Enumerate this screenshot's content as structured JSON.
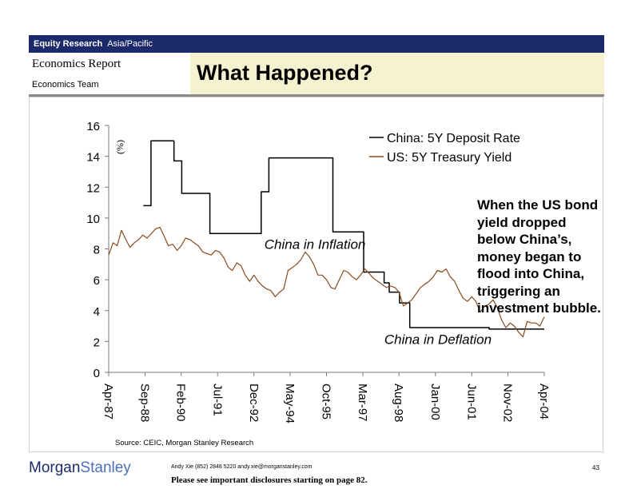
{
  "header": {
    "dept": "Equity Research",
    "region": "Asia/Pacific",
    "report_type": "Economics Report",
    "team": "Economics Team",
    "title": "What Happened?"
  },
  "annotation": "When the US bond yield dropped below China’s, money began to flood into China, triggering an investment bubble.",
  "source": "Source: CEIC, Morgan Stanley Research",
  "footer": {
    "logo_part1": "Morgan",
    "logo_part2": "Stanley",
    "contact": "Andy Xie (852) 2848 5220  andy.xie@morganstanley.com",
    "disclosure": "Please see important disclosures starting on page 82.",
    "page_number": "43"
  },
  "colors": {
    "header_bar": "#1b2a6b",
    "title_bg": "#f4f2cf",
    "china_series": "#000000",
    "us_series": "#8b4a1c"
  },
  "chart_data": {
    "type": "line",
    "title": "",
    "ylabel": "(%)",
    "xlabel": "",
    "ylim": [
      0,
      16
    ],
    "yticks": [
      "0",
      "2",
      "4",
      "6",
      "8",
      "10",
      "12",
      "14",
      "16"
    ],
    "xlim": [
      1987.25,
      2004.25
    ],
    "x_ticks": [
      {
        "x": 1987.25,
        "label": "Apr-87"
      },
      {
        "x": 1988.67,
        "label": "Sep-88"
      },
      {
        "x": 1990.08,
        "label": "Feb-90"
      },
      {
        "x": 1991.5,
        "label": "Jul-91"
      },
      {
        "x": 1992.92,
        "label": "Dec-92"
      },
      {
        "x": 1994.33,
        "label": "May-94"
      },
      {
        "x": 1995.75,
        "label": "Oct-95"
      },
      {
        "x": 1997.17,
        "label": "Mar-97"
      },
      {
        "x": 1998.58,
        "label": "Aug-98"
      },
      {
        "x": 2000.0,
        "label": "Jan-00"
      },
      {
        "x": 2001.42,
        "label": "Jun-01"
      },
      {
        "x": 2002.83,
        "label": "Nov-02"
      },
      {
        "x": 2004.25,
        "label": "Apr-04"
      }
    ],
    "legend": {
      "position": "top-right"
    },
    "series": [
      {
        "name": "China: 5Y Deposit Rate",
        "color": "#000000",
        "step": true,
        "points": [
          [
            1988.6,
            10.8
          ],
          [
            1988.9,
            10.8
          ],
          [
            1988.9,
            15.0
          ],
          [
            1989.8,
            15.0
          ],
          [
            1989.8,
            13.7
          ],
          [
            1990.1,
            13.7
          ],
          [
            1990.1,
            11.6
          ],
          [
            1991.2,
            11.6
          ],
          [
            1991.2,
            9.0
          ],
          [
            1993.2,
            9.0
          ],
          [
            1993.2,
            11.7
          ],
          [
            1993.5,
            11.7
          ],
          [
            1993.5,
            13.9
          ],
          [
            1996.0,
            13.9
          ],
          [
            1996.0,
            9.1
          ],
          [
            1997.2,
            9.1
          ],
          [
            1997.2,
            6.5
          ],
          [
            1998.0,
            6.5
          ],
          [
            1998.0,
            5.8
          ],
          [
            1998.2,
            5.8
          ],
          [
            1998.2,
            5.2
          ],
          [
            1998.6,
            5.2
          ],
          [
            1998.6,
            4.5
          ],
          [
            1999.0,
            4.5
          ],
          [
            1999.0,
            2.9
          ],
          [
            2002.1,
            2.9
          ],
          [
            2002.1,
            2.8
          ],
          [
            2004.25,
            2.8
          ]
        ]
      },
      {
        "name": "US: 5Y Treasury Yield",
        "color": "#8b4a1c",
        "points": [
          [
            1987.25,
            7.6
          ],
          [
            1987.42,
            8.4
          ],
          [
            1987.58,
            8.2
          ],
          [
            1987.75,
            9.2
          ],
          [
            1987.92,
            8.6
          ],
          [
            1988.08,
            8.1
          ],
          [
            1988.25,
            8.4
          ],
          [
            1988.42,
            8.6
          ],
          [
            1988.58,
            8.9
          ],
          [
            1988.75,
            8.7
          ],
          [
            1988.92,
            9.0
          ],
          [
            1989.08,
            9.3
          ],
          [
            1989.25,
            9.4
          ],
          [
            1989.42,
            8.8
          ],
          [
            1989.58,
            8.2
          ],
          [
            1989.75,
            8.3
          ],
          [
            1989.92,
            7.9
          ],
          [
            1990.08,
            8.2
          ],
          [
            1990.25,
            8.7
          ],
          [
            1990.42,
            8.6
          ],
          [
            1990.58,
            8.4
          ],
          [
            1990.75,
            8.2
          ],
          [
            1990.92,
            7.8
          ],
          [
            1991.08,
            7.7
          ],
          [
            1991.25,
            7.6
          ],
          [
            1991.42,
            7.9
          ],
          [
            1991.58,
            7.8
          ],
          [
            1991.75,
            7.4
          ],
          [
            1991.92,
            6.8
          ],
          [
            1992.08,
            6.6
          ],
          [
            1992.25,
            7.1
          ],
          [
            1992.42,
            6.9
          ],
          [
            1992.58,
            6.3
          ],
          [
            1992.75,
            5.9
          ],
          [
            1992.92,
            6.3
          ],
          [
            1993.08,
            5.9
          ],
          [
            1993.25,
            5.6
          ],
          [
            1993.42,
            5.4
          ],
          [
            1993.58,
            5.3
          ],
          [
            1993.75,
            4.9
          ],
          [
            1993.92,
            5.2
          ],
          [
            1994.08,
            5.4
          ],
          [
            1994.25,
            6.6
          ],
          [
            1994.42,
            6.8
          ],
          [
            1994.58,
            7.0
          ],
          [
            1994.75,
            7.3
          ],
          [
            1994.92,
            7.8
          ],
          [
            1995.08,
            7.5
          ],
          [
            1995.25,
            7.0
          ],
          [
            1995.42,
            6.3
          ],
          [
            1995.58,
            6.3
          ],
          [
            1995.75,
            6.0
          ],
          [
            1995.92,
            5.5
          ],
          [
            1996.08,
            5.4
          ],
          [
            1996.25,
            6.0
          ],
          [
            1996.42,
            6.6
          ],
          [
            1996.58,
            6.5
          ],
          [
            1996.75,
            6.2
          ],
          [
            1996.92,
            6.0
          ],
          [
            1997.08,
            6.3
          ],
          [
            1997.25,
            6.7
          ],
          [
            1997.42,
            6.4
          ],
          [
            1997.58,
            6.1
          ],
          [
            1997.75,
            5.9
          ],
          [
            1997.92,
            5.7
          ],
          [
            1998.08,
            5.5
          ],
          [
            1998.25,
            5.6
          ],
          [
            1998.42,
            5.5
          ],
          [
            1998.58,
            5.2
          ],
          [
            1998.75,
            4.3
          ],
          [
            1998.92,
            4.5
          ],
          [
            1999.08,
            4.7
          ],
          [
            1999.25,
            5.1
          ],
          [
            1999.42,
            5.5
          ],
          [
            1999.58,
            5.7
          ],
          [
            1999.75,
            5.9
          ],
          [
            1999.92,
            6.2
          ],
          [
            2000.08,
            6.6
          ],
          [
            2000.25,
            6.5
          ],
          [
            2000.42,
            6.7
          ],
          [
            2000.58,
            6.2
          ],
          [
            2000.75,
            5.9
          ],
          [
            2000.92,
            5.3
          ],
          [
            2001.08,
            4.8
          ],
          [
            2001.25,
            4.6
          ],
          [
            2001.42,
            4.9
          ],
          [
            2001.58,
            4.6
          ],
          [
            2001.75,
            3.9
          ],
          [
            2001.92,
            4.3
          ],
          [
            2002.08,
            4.4
          ],
          [
            2002.25,
            4.7
          ],
          [
            2002.42,
            4.2
          ],
          [
            2002.58,
            3.4
          ],
          [
            2002.75,
            2.9
          ],
          [
            2002.92,
            3.2
          ],
          [
            2003.08,
            3.0
          ],
          [
            2003.25,
            2.6
          ],
          [
            2003.42,
            2.3
          ],
          [
            2003.58,
            3.3
          ],
          [
            2003.75,
            3.2
          ],
          [
            2003.92,
            3.2
          ],
          [
            2004.08,
            3.0
          ],
          [
            2004.25,
            3.6
          ]
        ]
      }
    ],
    "annotations": [
      {
        "text": "China in Inflation",
        "x": 1995.3,
        "y": 8.0
      },
      {
        "text": "China in Deflation",
        "x": 2000.1,
        "y": 1.85
      }
    ]
  }
}
